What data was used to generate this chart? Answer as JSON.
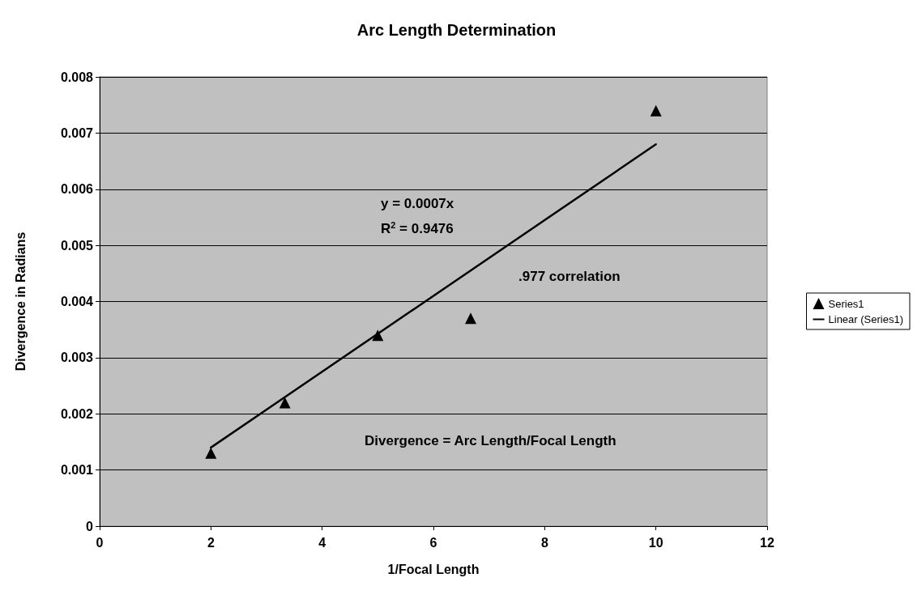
{
  "chart_data": {
    "type": "scatter",
    "title": "Arc Length Determination",
    "xlabel": "1/Focal Length",
    "ylabel": "Divergence in Radians",
    "annotations": [
      "y = 0.0007x",
      "R$^{2}$ = 0.9476",
      ".977 correlation",
      "Divergence = Arc Length/Focal Length"
    ],
    "series": [
      {
        "name": "Series1",
        "color": "#000000",
        "x": [
          2,
          3.33,
          5,
          6.67,
          10
        ],
        "values": [
          0.0013,
          0.0022,
          0.0034,
          0.0037,
          0.0074
        ]
      },
      {
        "name": "Linear (Series1)",
        "type": "line",
        "marker": "none",
        "color": "#000000",
        "x": [
          2,
          10
        ],
        "values": [
          0.0014,
          0.0068
        ]
      }
    ],
    "xlim": [
      0,
      12
    ],
    "xticks": [
      0,
      2,
      4,
      6,
      8,
      10,
      12
    ],
    "ylim": [
      0,
      0.008
    ],
    "yticks": [
      0,
      0.001,
      0.002,
      0.003,
      0.004,
      0.005,
      0.006,
      0.007,
      0.008
    ],
    "grid": "y",
    "legend": "right",
    "marker": "triangle"
  }
}
